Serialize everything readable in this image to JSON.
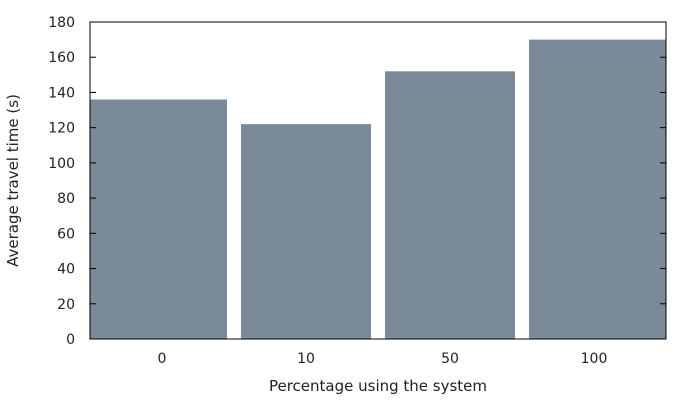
{
  "chart_data": {
    "type": "bar",
    "title": "",
    "categories": [
      "0",
      "10",
      "50",
      "100"
    ],
    "values": [
      136,
      122,
      152,
      170
    ],
    "xlabel": "Percentage using the system",
    "ylabel": "Average travel time (s)",
    "ylim": [
      0,
      180
    ],
    "yticks": [
      0,
      20,
      40,
      60,
      80,
      100,
      120,
      140,
      160,
      180
    ],
    "grid": false,
    "legend": "none",
    "bar_color": "#7a8a99",
    "axis_color": "#000000"
  }
}
